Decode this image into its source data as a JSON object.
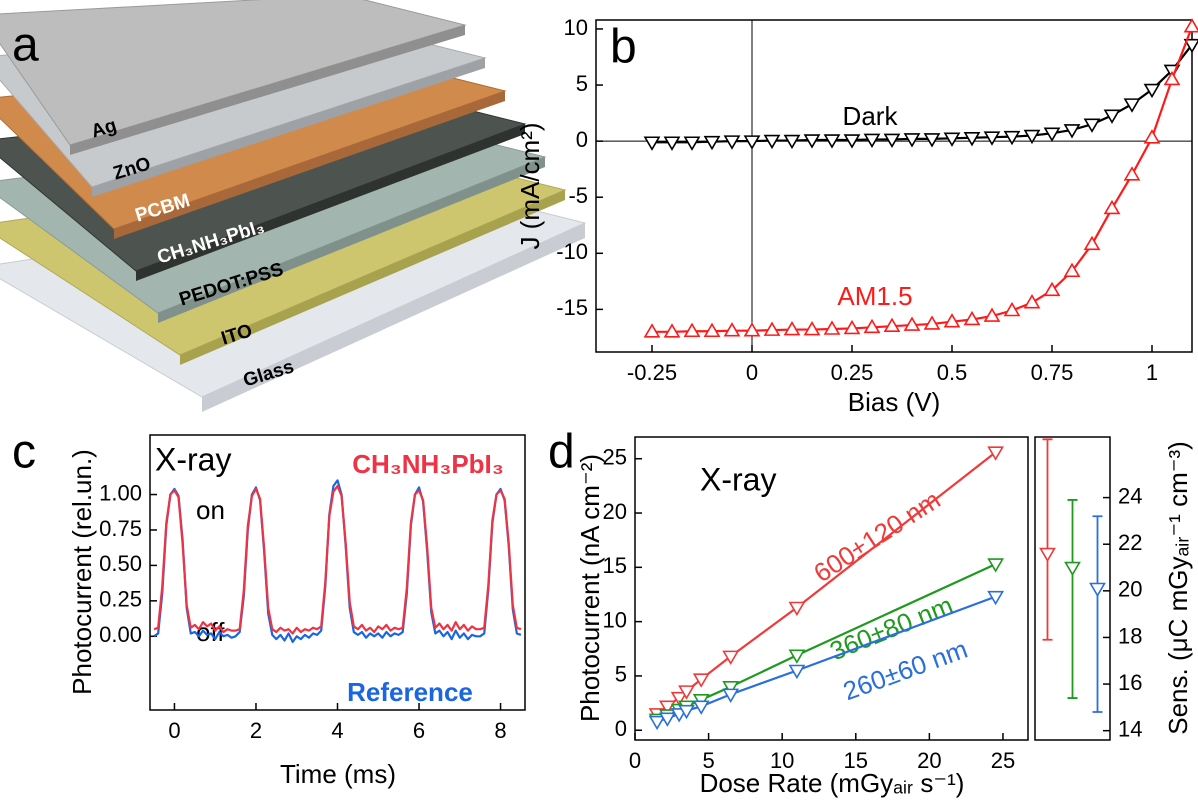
{
  "diagram": {
    "label": "a",
    "layers": [
      "Ag",
      "ZnO",
      "PCBM",
      "CH₃NH₃PbI₃",
      "PEDOT:PSS",
      "ITO",
      "Glass"
    ]
  },
  "chart_data": [
    {
      "type": "line",
      "panel": "b",
      "xlabel": "Bias (V)",
      "ylabel": "J (mA/cm²)",
      "xlim": [
        -0.39,
        1.1
      ],
      "ylim": [
        -18.8,
        10.8
      ],
      "xticks": [
        -0.25,
        0,
        0.25,
        0.5,
        0.75,
        1
      ],
      "yticks": [
        -15,
        -10,
        -5,
        0,
        5,
        10
      ],
      "zero_lines": true,
      "x": [
        -0.25,
        -0.2,
        -0.15,
        -0.1,
        -0.05,
        0,
        0.05,
        0.1,
        0.15,
        0.2,
        0.25,
        0.3,
        0.35,
        0.4,
        0.45,
        0.5,
        0.55,
        0.6,
        0.65,
        0.7,
        0.75,
        0.8,
        0.85,
        0.9,
        0.95,
        1.0,
        1.05,
        1.1
      ],
      "series": [
        {
          "name": "Dark",
          "color": "#000000",
          "marker": "triangle-down",
          "values": [
            -0.1,
            -0.1,
            -0.1,
            -0.05,
            0,
            0,
            0.05,
            0.05,
            0.1,
            0.1,
            0.1,
            0.15,
            0.15,
            0.2,
            0.2,
            0.25,
            0.3,
            0.35,
            0.4,
            0.5,
            0.7,
            1.0,
            1.5,
            2.3,
            3.3,
            4.6,
            6.3,
            8.6
          ]
        },
        {
          "name": "AM1.5",
          "color": "#ff1a1a",
          "marker": "triangle-up",
          "values": [
            -17.0,
            -17.0,
            -16.95,
            -16.95,
            -16.9,
            -16.9,
            -16.85,
            -16.8,
            -16.8,
            -16.75,
            -16.7,
            -16.6,
            -16.5,
            -16.4,
            -16.3,
            -16.1,
            -15.9,
            -15.6,
            -15.1,
            -14.4,
            -13.3,
            -11.6,
            -9.2,
            -6.0,
            -3.0,
            0.3,
            5.5,
            10.2
          ]
        }
      ]
    },
    {
      "type": "line",
      "panel": "c",
      "xlabel": "Time (ms)",
      "ylabel": "Photocurrent (rel.un.)",
      "annotations": [
        "X-ray",
        "on",
        "off"
      ],
      "xlim": [
        -0.6,
        8.6
      ],
      "ylim": [
        -0.52,
        1.42
      ],
      "xticks": [
        0,
        2,
        4,
        6,
        8
      ],
      "yticks": [
        {
          "value": 0,
          "label": "0.00"
        },
        0.25,
        {
          "value": 0.5,
          "label": "0.50"
        },
        0.75,
        {
          "value": 1,
          "label": "1.00"
        }
      ],
      "x": [
        -0.5,
        -0.4,
        -0.3,
        -0.2,
        -0.1,
        0,
        0.1,
        0.2,
        0.3,
        0.4,
        0.5,
        0.6,
        0.7,
        0.8,
        0.9,
        1.0,
        1.1,
        1.2,
        1.3,
        1.4,
        1.5,
        1.6,
        1.7,
        1.8,
        1.9,
        2.0,
        2.1,
        2.2,
        2.3,
        2.4,
        2.5,
        2.6,
        2.7,
        2.8,
        2.9,
        3.0,
        3.1,
        3.2,
        3.3,
        3.4,
        3.5,
        3.6,
        3.7,
        3.8,
        3.9,
        4.0,
        4.1,
        4.2,
        4.3,
        4.4,
        4.5,
        4.6,
        4.7,
        4.8,
        4.9,
        5.0,
        5.1,
        5.2,
        5.3,
        5.4,
        5.5,
        5.6,
        5.7,
        5.8,
        5.9,
        6.0,
        6.1,
        6.2,
        6.3,
        6.4,
        6.5,
        6.6,
        6.7,
        6.8,
        6.9,
        7.0,
        7.1,
        7.2,
        7.3,
        7.4,
        7.5,
        7.6,
        7.7,
        7.8,
        7.9,
        8.0,
        8.1,
        8.2,
        8.3,
        8.4,
        8.5
      ],
      "series": [
        {
          "name": "Reference",
          "color": "#1a66e0",
          "values": [
            0.0,
            0.02,
            0.3,
            0.78,
            1.0,
            1.04,
            0.99,
            0.68,
            0.2,
            0.02,
            0.03,
            0.0,
            0.04,
            0.01,
            0.02,
            -0.02,
            0.03,
            0.0,
            0.01,
            -0.01,
            0.0,
            0.03,
            0.28,
            0.75,
            1.0,
            1.05,
            0.96,
            0.6,
            0.16,
            0.01,
            -0.02,
            0.01,
            -0.03,
            0.02,
            -0.04,
            0.0,
            -0.02,
            0.01,
            -0.01,
            0.02,
            0.01,
            0.04,
            0.35,
            0.86,
            1.06,
            1.1,
            1.0,
            0.64,
            0.2,
            0.03,
            0.01,
            0.03,
            -0.01,
            0.02,
            0.0,
            0.02,
            -0.01,
            0.03,
            0.0,
            0.02,
            0.01,
            0.03,
            0.3,
            0.78,
            1.0,
            1.05,
            0.95,
            0.6,
            0.17,
            0.02,
            0.04,
            0.0,
            0.03,
            -0.02,
            0.04,
            -0.01,
            0.02,
            -0.02,
            0.01,
            0.0,
            0.0,
            0.02,
            0.33,
            0.8,
            1.0,
            1.04,
            0.96,
            0.64,
            0.19,
            0.02,
            0.01
          ]
        },
        {
          "name": "CH₃NH₃PbI₃",
          "color": "#ee3344",
          "values": [
            0.05,
            0.06,
            0.35,
            0.8,
            1.0,
            1.03,
            0.98,
            0.65,
            0.22,
            0.06,
            0.08,
            0.05,
            0.1,
            0.07,
            0.09,
            0.04,
            0.07,
            0.03,
            0.05,
            0.04,
            0.04,
            0.05,
            0.32,
            0.78,
            0.99,
            1.04,
            0.97,
            0.62,
            0.2,
            0.05,
            0.03,
            0.06,
            0.04,
            0.05,
            0.02,
            0.06,
            0.03,
            0.05,
            0.04,
            0.06,
            0.05,
            0.07,
            0.38,
            0.85,
            1.02,
            1.06,
            0.99,
            0.66,
            0.24,
            0.07,
            0.05,
            0.08,
            0.04,
            0.06,
            0.03,
            0.07,
            0.05,
            0.08,
            0.04,
            0.06,
            0.05,
            0.06,
            0.34,
            0.8,
            1.0,
            1.03,
            0.96,
            0.63,
            0.2,
            0.06,
            0.09,
            0.05,
            0.08,
            0.04,
            0.1,
            0.05,
            0.08,
            0.04,
            0.07,
            0.05,
            0.05,
            0.06,
            0.36,
            0.82,
            1.0,
            1.03,
            0.97,
            0.66,
            0.22,
            0.06,
            0.05
          ]
        }
      ]
    },
    {
      "type": "line",
      "panel": "d",
      "xlabel": "Dose Rate (mGyₐᵢᵣ s⁻¹)",
      "ylabel": "Photocurrent (nA cm⁻²)",
      "annotations": [
        "X-ray"
      ],
      "xlim": [
        0,
        26.7
      ],
      "ylim": [
        -0.9,
        27
      ],
      "xticks": [
        0,
        5,
        10,
        15,
        20,
        25
      ],
      "yticks": [
        0,
        5,
        10,
        15,
        20,
        25
      ],
      "x": [
        1.5,
        2.2,
        3,
        3.5,
        4.5,
        6.5,
        11,
        24.5
      ],
      "series": [
        {
          "name": "600±120 nm",
          "color": "#f03a3a",
          "marker": "triangle-down",
          "values": [
            1.5,
            2.2,
            3.0,
            3.6,
            4.7,
            6.8,
            11.3,
            25.6
          ]
        },
        {
          "name": "360±80 nm",
          "color": "#1f9a1f",
          "marker": "triangle-down",
          "values": [
            1.0,
            1.4,
            1.9,
            2.2,
            2.8,
            4.0,
            6.9,
            15.3
          ]
        },
        {
          "name": "260±60 nm",
          "color": "#2a6fdc",
          "marker": "triangle-down",
          "values": [
            0.8,
            1.1,
            1.5,
            1.8,
            2.2,
            3.3,
            5.5,
            12.3
          ]
        }
      ]
    },
    {
      "type": "errorbar",
      "ylabel": "Sens. (μC mGyₐᵢᵣ⁻¹ cm⁻³)",
      "ylim": [
        13.6,
        26.6
      ],
      "yticks": [
        14,
        16,
        18,
        20,
        22,
        24
      ],
      "categories": [
        null,
        null,
        null
      ],
      "marker": "triangle-down",
      "colors": [
        "#f03a3a",
        "#1f9a1f",
        "#2a6fdc"
      ],
      "values": [
        21.6,
        21.0,
        20.1
      ],
      "yerr": [
        [
          3.7,
          4.9
        ],
        [
          5.6,
          2.9
        ],
        [
          5.3,
          3.1
        ]
      ]
    }
  ]
}
